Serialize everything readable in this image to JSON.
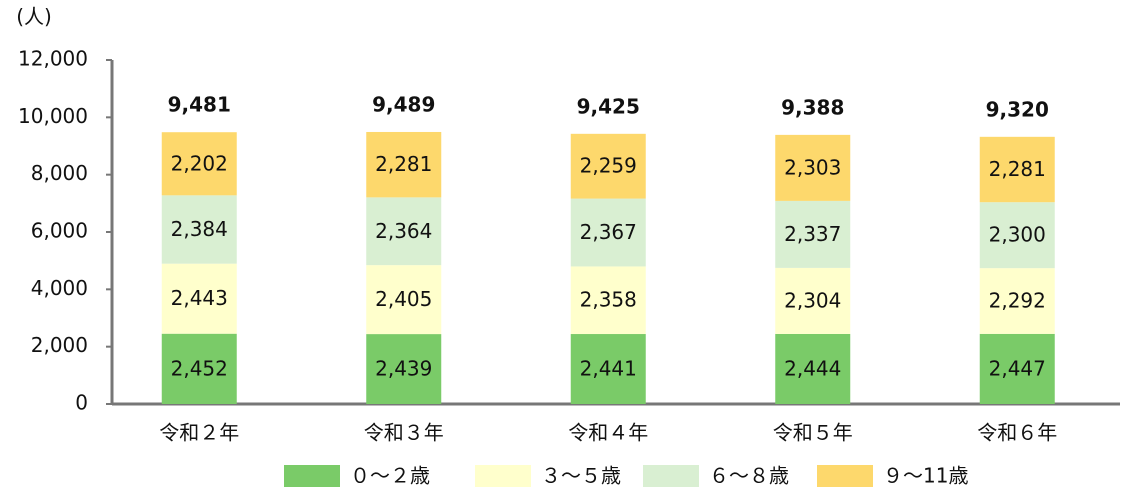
{
  "chart_data": {
    "type": "stacked_bar",
    "y_unit": "(人)",
    "categories": [
      "令和２年",
      "令和３年",
      "令和４年",
      "令和５年",
      "令和６年"
    ],
    "series": [
      {
        "name": "０～２歳",
        "color": "#7acb68",
        "values": [
          2452,
          2439,
          2441,
          2444,
          2447
        ],
        "value_labels": [
          "2,452",
          "2,439",
          "2,441",
          "2,444",
          "2,447"
        ]
      },
      {
        "name": "３～５歳",
        "color": "#ffffcc",
        "values": [
          2443,
          2405,
          2358,
          2304,
          2292
        ],
        "value_labels": [
          "2,443",
          "2,405",
          "2,358",
          "2,304",
          "2,292"
        ]
      },
      {
        "name": "６～８歳",
        "color": "#d9efd2",
        "values": [
          2384,
          2364,
          2367,
          2337,
          2300
        ],
        "value_labels": [
          "2,384",
          "2,364",
          "2,367",
          "2,337",
          "2,300"
        ]
      },
      {
        "name": "９～11歳",
        "color": "#fdd86c",
        "values": [
          2202,
          2281,
          2259,
          2303,
          2281
        ],
        "value_labels": [
          "2,202",
          "2,281",
          "2,259",
          "2,303",
          "2,281"
        ]
      }
    ],
    "totals": [
      9481,
      9489,
      9425,
      9388,
      9320
    ],
    "total_labels": [
      "9,481",
      "9,489",
      "9,425",
      "9,388",
      "9,320"
    ],
    "ylim": [
      0,
      12000
    ],
    "yticks": [
      0,
      {
        "value": 2000,
        "label": "2,000"
      },
      {
        "value": 4000,
        "label": "4,000"
      },
      {
        "value": 6000,
        "label": "6,000"
      },
      {
        "value": 8000,
        "label": "8,000"
      },
      {
        "value": 10000,
        "label": "10,000"
      },
      {
        "value": 12000,
        "label": "12,000"
      }
    ]
  }
}
